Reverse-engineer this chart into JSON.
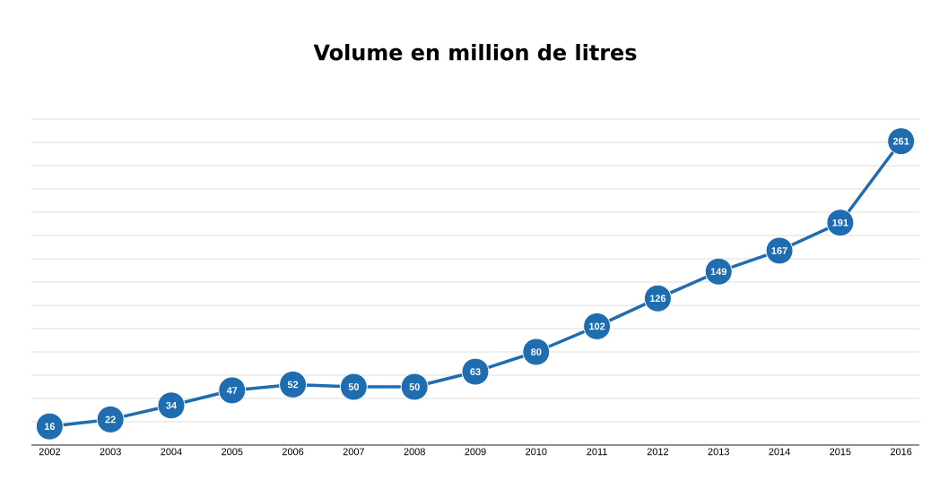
{
  "chart_data": {
    "type": "line",
    "title": "Volume en  million de litres",
    "categories": [
      "2002",
      "2003",
      "2004",
      "2005",
      "2006",
      "2007",
      "2008",
      "2009",
      "2010",
      "2011",
      "2012",
      "2013",
      "2014",
      "2015",
      "2016"
    ],
    "values": [
      16,
      22,
      34,
      47,
      52,
      50,
      50,
      63,
      80,
      102,
      126,
      149,
      167,
      191,
      261
    ],
    "color": "#1f6db0",
    "marker": "circle",
    "line_style": "solid",
    "data_labels": true,
    "grid": "y",
    "tick_labels": "x"
  }
}
